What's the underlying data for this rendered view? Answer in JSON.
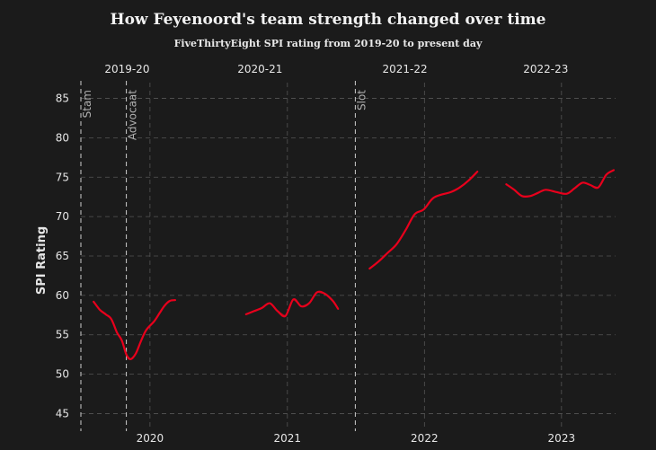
{
  "chart_data": {
    "type": "line",
    "title": "How Feyenoord's team strength changed over time",
    "subtitle": "FiveThirtyEight SPI rating from 2019-20 to present day",
    "xlabel": "",
    "ylabel": "SPI Rating",
    "ylim": [
      43,
      87
    ],
    "yticks": [
      45,
      50,
      55,
      60,
      65,
      70,
      75,
      80,
      85
    ],
    "xlim": [
      "2019-07-01",
      "2023-05-25"
    ],
    "xticks": [
      {
        "label": "2020",
        "date": "2020-01-01"
      },
      {
        "label": "2021",
        "date": "2021-01-01"
      },
      {
        "label": "2022",
        "date": "2022-01-01"
      },
      {
        "label": "2023",
        "date": "2023-01-01"
      }
    ],
    "seasons": [
      {
        "label": "2019-20",
        "date": "2019-11-01"
      },
      {
        "label": "2020-21",
        "date": "2020-10-20"
      },
      {
        "label": "2021-22",
        "date": "2021-11-10"
      },
      {
        "label": "2022-23",
        "date": "2022-11-20"
      }
    ],
    "managers": [
      {
        "name": "Stam",
        "date": "2019-07-01"
      },
      {
        "name": "Advocaat",
        "date": "2019-10-30"
      },
      {
        "name": "Slot",
        "date": "2021-07-01"
      }
    ],
    "grid": true,
    "series": [
      {
        "name": "",
        "segments": [
          {
            "x": [
              "2019-08-04",
              "2019-08-20",
              "2019-09-05",
              "2019-09-20",
              "2019-10-05",
              "2019-10-18",
              "2019-10-30",
              "2019-11-10",
              "2019-11-24",
              "2019-12-08",
              "2019-12-22",
              "2020-01-12",
              "2020-01-26",
              "2020-02-09",
              "2020-02-23",
              "2020-03-08"
            ],
            "y": [
              59.2,
              58.2,
              57.6,
              57.0,
              55.3,
              54.3,
              52.5,
              51.9,
              52.6,
              54.2,
              55.6,
              56.7,
              57.7,
              58.7,
              59.3,
              59.4
            ]
          },
          {
            "x": [
              "2020-09-13",
              "2020-10-04",
              "2020-10-25",
              "2020-11-15",
              "2020-12-06",
              "2020-12-27",
              "2021-01-17",
              "2021-02-07",
              "2021-02-28",
              "2021-03-21",
              "2021-04-11",
              "2021-05-02",
              "2021-05-16"
            ],
            "y": [
              57.6,
              58.0,
              58.4,
              59.0,
              58.0,
              57.4,
              59.5,
              58.6,
              59.0,
              60.4,
              60.2,
              59.3,
              58.3
            ]
          },
          {
            "x": [
              "2021-08-08",
              "2021-09-01",
              "2021-09-25",
              "2021-10-19",
              "2021-11-12",
              "2021-12-06",
              "2021-12-30",
              "2022-01-23",
              "2022-02-16",
              "2022-03-12",
              "2022-04-05",
              "2022-04-29",
              "2022-05-22"
            ],
            "y": [
              63.4,
              64.3,
              65.4,
              66.5,
              68.3,
              70.3,
              70.9,
              72.3,
              72.8,
              73.1,
              73.7,
              74.6,
              75.7
            ]
          },
          {
            "x": [
              "2022-08-07",
              "2022-08-28",
              "2022-09-18",
              "2022-10-09",
              "2022-10-30",
              "2022-11-20",
              "2022-12-20",
              "2023-01-15",
              "2023-02-05",
              "2023-02-26",
              "2023-03-19",
              "2023-04-09",
              "2023-04-30",
              "2023-05-20"
            ],
            "y": [
              74.1,
              73.4,
              72.6,
              72.6,
              73.0,
              73.4,
              73.1,
              72.9,
              73.6,
              74.3,
              74.0,
              73.7,
              75.3,
              75.9
            ]
          }
        ]
      }
    ]
  }
}
